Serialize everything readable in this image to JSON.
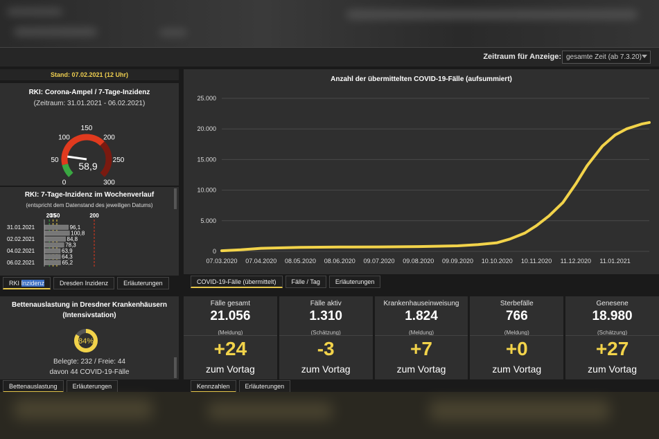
{
  "header": {
    "zeitraum_label": "Zeitraum für Anzeige:",
    "zeitraum_value": "gesamte Zeit (ab 7.3.20)"
  },
  "stand": "Stand: 07.02.2021 (12 Uhr)",
  "ampel": {
    "title": "RKI: Corona-Ampel / 7-Tage-Inzidenz",
    "subtitle": "(Zeitraum: 31.01.2021 - 06.02.2021)",
    "value_text": "58,9",
    "value": 58.9,
    "ticks": [
      "0",
      "50",
      "100",
      "150",
      "200",
      "250",
      "300"
    ]
  },
  "verlauf": {
    "title": "RKI: 7-Tage-Inzidenz im Wochenverlauf",
    "subtitle": "(entspricht dem Datenstand des jeweiligen Datums)",
    "axis_ticks": [
      "20",
      "35",
      "50",
      "200"
    ],
    "rows": [
      {
        "date": "31.01.2021",
        "value": 96.1,
        "label": "96,1"
      },
      {
        "date": "",
        "value": 100.8,
        "label": "100,8"
      },
      {
        "date": "02.02.2021",
        "value": 84.8,
        "label": "84,8"
      },
      {
        "date": "",
        "value": 78.3,
        "label": "78,3"
      },
      {
        "date": "04.02.2021",
        "value": 63.9,
        "label": "63,9"
      },
      {
        "date": "",
        "value": 64.3,
        "label": "64,3"
      },
      {
        "date": "06.02.2021",
        "value": 65.2,
        "label": "65,2"
      }
    ]
  },
  "tabs_left": [
    "RKI Inzidenz",
    "Dresden Inzidenz",
    "Erläuterungen"
  ],
  "betten": {
    "title": "Bettenauslastung in Dresdner Krankenhäusern",
    "subtitle": "(Intensivstation)",
    "percent_text": "84%",
    "percent": 84,
    "line1": "Belegte: 232 / Freie: 44",
    "line2": "davon 44 COVID-19-Fälle"
  },
  "tabs_betten": [
    "Bettenauslastung",
    "Erläuterungen"
  ],
  "tabs_chart": [
    "COVID-19-Fälle (übermittelt)",
    "Fälle / Tag",
    "Erläuterungen"
  ],
  "tabs_stats": [
    "Kennzahlen",
    "Erläuterungen"
  ],
  "stats": [
    {
      "label": "Fälle gesamt",
      "value": "21.056",
      "source": "(Meldung)",
      "delta": "+24",
      "vortag": "zum Vortag"
    },
    {
      "label": "Fälle aktiv",
      "value": "1.310",
      "source": "(Schätzung)",
      "delta": "-3",
      "vortag": "zum Vortag"
    },
    {
      "label": "Krankenhauseinweisung",
      "value": "1.824",
      "source": "(Meldung)",
      "delta": "+7",
      "vortag": "zum Vortag"
    },
    {
      "label": "Sterbefälle",
      "value": "766",
      "source": "(Meldung)",
      "delta": "+0",
      "vortag": "zum Vortag"
    },
    {
      "label": "Genesene",
      "value": "18.980",
      "source": "(Schätzung)",
      "delta": "+27",
      "vortag": "zum Vortag"
    }
  ],
  "colors": {
    "accent": "#f2d34a",
    "gauge_red": "#e03a1e",
    "gauge_dark": "#7a1a10",
    "gauge_green": "#3aa842"
  },
  "chart_data": {
    "type": "line",
    "title": "Anzahl der übermittelten COVID-19-Fälle (aufsummiert)",
    "ylim": [
      0,
      25000
    ],
    "yticks": [
      "0",
      "5.000",
      "10.000",
      "15.000",
      "20.000",
      "25.000"
    ],
    "ytick_values": [
      0,
      5000,
      10000,
      15000,
      20000,
      25000
    ],
    "xticks": [
      "07.03.2020",
      "07.04.2020",
      "08.05.2020",
      "08.06.2020",
      "09.07.2020",
      "09.08.2020",
      "09.09.2020",
      "10.10.2020",
      "10.11.2020",
      "11.12.2020",
      "11.01.2021"
    ],
    "x_range": [
      "07.03.2020",
      "07.02.2021"
    ],
    "series": [
      {
        "points": [
          [
            "07.03.2020",
            100
          ],
          [
            "22.03.2020",
            250
          ],
          [
            "07.04.2020",
            500
          ],
          [
            "08.05.2020",
            650
          ],
          [
            "08.06.2020",
            700
          ],
          [
            "09.07.2020",
            720
          ],
          [
            "09.08.2020",
            780
          ],
          [
            "09.09.2020",
            900
          ],
          [
            "25.09.2020",
            1100
          ],
          [
            "10.10.2020",
            1400
          ],
          [
            "20.10.2020",
            2000
          ],
          [
            "01.11.2020",
            3000
          ],
          [
            "10.11.2020",
            4200
          ],
          [
            "20.11.2020",
            5800
          ],
          [
            "01.12.2020",
            8000
          ],
          [
            "11.12.2020",
            11000
          ],
          [
            "20.12.2020",
            14000
          ],
          [
            "01.01.2021",
            17200
          ],
          [
            "11.01.2021",
            19000
          ],
          [
            "20.01.2021",
            20000
          ],
          [
            "01.02.2021",
            20800
          ],
          [
            "07.02.2021",
            21056
          ]
        ]
      }
    ]
  }
}
